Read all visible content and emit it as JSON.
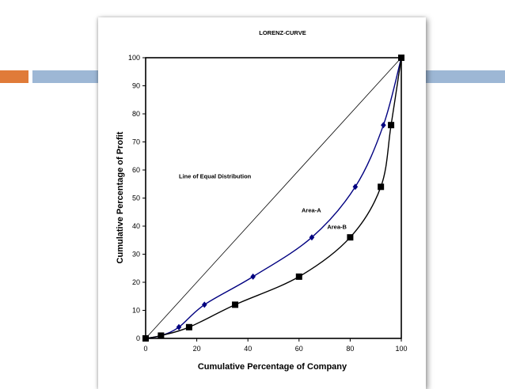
{
  "slide": {
    "accent_colors": {
      "orange": "#E07B39",
      "blue": "#9DB7D5"
    }
  },
  "chart_data": {
    "type": "line",
    "title": "LORENZ-CURVE",
    "xlabel": "Cumulative Percentage of Company",
    "ylabel": "Cumulative Percentage of Profit",
    "xlim": [
      0,
      100
    ],
    "ylim": [
      0,
      100
    ],
    "x_ticks": [
      "0",
      "20",
      "40",
      "60",
      "80",
      "100"
    ],
    "y_ticks": [
      "0",
      "10",
      "20",
      "30",
      "40",
      "50",
      "60",
      "70",
      "80",
      "90",
      "100"
    ],
    "grid": false,
    "series": [
      {
        "color": "#000080",
        "marker": "diamond",
        "points": [
          [
            0,
            0
          ],
          [
            6,
            1
          ],
          [
            13,
            4
          ],
          [
            23,
            12
          ],
          [
            42,
            22
          ],
          [
            65,
            36
          ],
          [
            82,
            54
          ],
          [
            93,
            76
          ],
          [
            100,
            100
          ]
        ]
      },
      {
        "color": "#000000",
        "marker": "square",
        "points": [
          [
            0,
            0
          ],
          [
            6,
            1
          ],
          [
            17,
            4
          ],
          [
            35,
            12
          ],
          [
            60,
            22
          ],
          [
            80,
            36
          ],
          [
            92,
            54
          ],
          [
            96,
            76
          ],
          [
            100,
            100
          ]
        ]
      },
      {
        "color": "#000000",
        "marker": "none",
        "points": [
          [
            0,
            0
          ],
          [
            100,
            100
          ]
        ]
      }
    ],
    "annotations": [
      {
        "text": "Line of Equal Distribution",
        "x": 13,
        "y": 57
      },
      {
        "text": "Area-A",
        "x": 61,
        "y": 45
      },
      {
        "text": "Area-B",
        "x": 71,
        "y": 39
      }
    ]
  }
}
